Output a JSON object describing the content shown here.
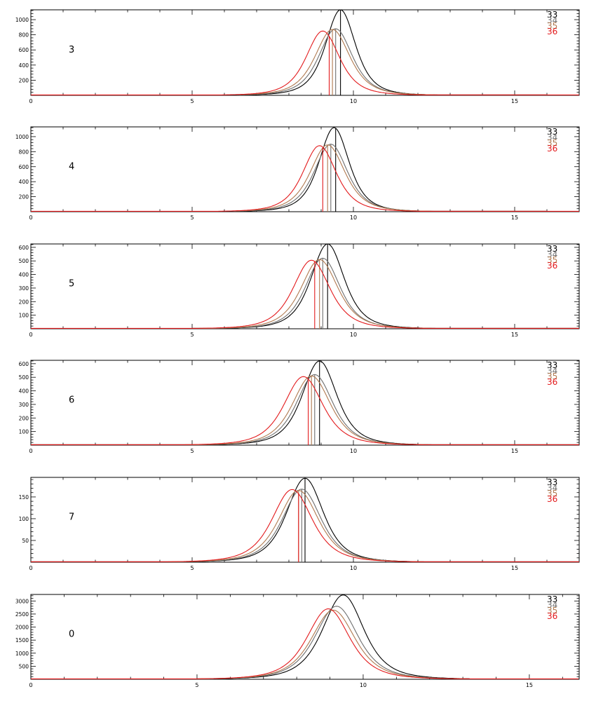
{
  "legend_labels": [
    "33",
    "34",
    "35",
    "36"
  ],
  "colors": {
    "33": "#000000",
    "34": "#6e6e6e",
    "35": "#b07a50",
    "36": "#e31a1c"
  },
  "chart_data": [
    {
      "type": "line",
      "panel_label": "3",
      "xlim": [
        0,
        17
      ],
      "ylim": [
        0,
        1130
      ],
      "xticks": [
        "0",
        "5",
        "10",
        "15"
      ],
      "yticks": [
        "200",
        "400",
        "600",
        "800",
        "1000"
      ],
      "legend_position": "top-right",
      "series": [
        {
          "name": "33",
          "color": "#000000",
          "peak_x": 9.6,
          "peak_y": 1130,
          "width": 0.45,
          "marker_x": 9.6,
          "x_start": 6.5,
          "x_end": 16.0
        },
        {
          "name": "34",
          "color": "#6e6e6e",
          "peak_x": 9.45,
          "peak_y": 880,
          "width": 0.5,
          "marker_x": 9.45,
          "x_start": 6.5,
          "x_end": 16.0
        },
        {
          "name": "35",
          "color": "#b07a50",
          "peak_x": 9.35,
          "peak_y": 870,
          "width": 0.52,
          "marker_x": 9.35,
          "x_start": 6.5,
          "x_end": 16.0
        },
        {
          "name": "36",
          "color": "#e31a1c",
          "peak_x": 9.05,
          "peak_y": 850,
          "width": 0.5,
          "marker_x": 9.25,
          "x_start": 0,
          "x_end": 17
        }
      ]
    },
    {
      "type": "line",
      "panel_label": "4",
      "xlim": [
        0,
        17
      ],
      "ylim": [
        0,
        1130
      ],
      "xticks": [
        "0",
        "5",
        "10",
        "15"
      ],
      "yticks": [
        "200",
        "400",
        "600",
        "800",
        "1000"
      ],
      "legend_position": "top-right",
      "series": [
        {
          "name": "33",
          "color": "#000000",
          "peak_x": 9.4,
          "peak_y": 1120,
          "width": 0.45,
          "marker_x": 9.45,
          "x_start": 6.3,
          "x_end": 16.0
        },
        {
          "name": "34",
          "color": "#6e6e6e",
          "peak_x": 9.3,
          "peak_y": 900,
          "width": 0.5,
          "marker_x": 9.3,
          "x_start": 6.3,
          "x_end": 16.0
        },
        {
          "name": "35",
          "color": "#b07a50",
          "peak_x": 9.2,
          "peak_y": 890,
          "width": 0.52,
          "marker_x": 9.2,
          "x_start": 6.3,
          "x_end": 16.0
        },
        {
          "name": "36",
          "color": "#e31a1c",
          "peak_x": 8.95,
          "peak_y": 880,
          "width": 0.5,
          "marker_x": 9.05,
          "x_start": 0,
          "x_end": 17
        }
      ]
    },
    {
      "type": "line",
      "panel_label": "5",
      "xlim": [
        0,
        17
      ],
      "ylim": [
        0,
        625
      ],
      "xticks": [
        "0",
        "5",
        "10",
        "15"
      ],
      "yticks": [
        "100",
        "200",
        "300",
        "400",
        "500",
        "600"
      ],
      "legend_position": "top-right",
      "series": [
        {
          "name": "33",
          "color": "#000000",
          "peak_x": 9.2,
          "peak_y": 625,
          "width": 0.5,
          "marker_x": 9.2,
          "x_start": 5.0,
          "x_end": 17
        },
        {
          "name": "34",
          "color": "#6e6e6e",
          "peak_x": 9.05,
          "peak_y": 520,
          "width": 0.52,
          "marker_x": 9.05,
          "x_start": 5.0,
          "x_end": 17
        },
        {
          "name": "35",
          "color": "#b07a50",
          "peak_x": 8.95,
          "peak_y": 510,
          "width": 0.55,
          "marker_x": 8.95,
          "x_start": 5.0,
          "x_end": 17
        },
        {
          "name": "36",
          "color": "#e31a1c",
          "peak_x": 8.7,
          "peak_y": 505,
          "width": 0.55,
          "marker_x": 8.8,
          "x_start": 0,
          "x_end": 17
        }
      ]
    },
    {
      "type": "line",
      "panel_label": "6",
      "xlim": [
        0,
        17
      ],
      "ylim": [
        0,
        625
      ],
      "xticks": [
        "0",
        "5",
        "10",
        "15"
      ],
      "yticks": [
        "100",
        "200",
        "300",
        "400",
        "500",
        "600"
      ],
      "legend_position": "top-right",
      "series": [
        {
          "name": "33",
          "color": "#000000",
          "peak_x": 8.95,
          "peak_y": 620,
          "width": 0.52,
          "marker_x": 8.95,
          "x_start": 0,
          "x_end": 17
        },
        {
          "name": "34",
          "color": "#6e6e6e",
          "peak_x": 8.8,
          "peak_y": 520,
          "width": 0.55,
          "marker_x": 8.8,
          "x_start": 0,
          "x_end": 17
        },
        {
          "name": "35",
          "color": "#b07a50",
          "peak_x": 8.7,
          "peak_y": 510,
          "width": 0.57,
          "marker_x": 8.7,
          "x_start": 0,
          "x_end": 17
        },
        {
          "name": "36",
          "color": "#e31a1c",
          "peak_x": 8.45,
          "peak_y": 505,
          "width": 0.58,
          "marker_x": 8.6,
          "x_start": 0,
          "x_end": 17
        }
      ]
    },
    {
      "type": "line",
      "panel_label": "7",
      "xlim": [
        0,
        17
      ],
      "ylim": [
        0,
        195
      ],
      "xticks": [
        "0",
        "5",
        "10",
        "15"
      ],
      "yticks": [
        "50",
        "100",
        "150"
      ],
      "legend_position": "top-right",
      "series": [
        {
          "name": "33",
          "color": "#000000",
          "peak_x": 8.5,
          "peak_y": 193,
          "width": 0.55,
          "marker_x": 8.5,
          "x_start": 0,
          "x_end": 17
        },
        {
          "name": "34",
          "color": "#6e6e6e",
          "peak_x": 8.4,
          "peak_y": 168,
          "width": 0.58,
          "marker_x": 8.4,
          "x_start": 0,
          "x_end": 17
        },
        {
          "name": "35",
          "color": "#b07a50",
          "peak_x": 8.3,
          "peak_y": 165,
          "width": 0.6,
          "marker_x": 8.3,
          "x_start": 0,
          "x_end": 17
        },
        {
          "name": "36",
          "color": "#e31a1c",
          "peak_x": 8.1,
          "peak_y": 167,
          "width": 0.6,
          "marker_x": 8.3,
          "x_start": 0,
          "x_end": 17
        }
      ]
    },
    {
      "type": "line",
      "panel_label": "0",
      "xlim": [
        0,
        16.5
      ],
      "ylim": [
        0,
        3250
      ],
      "xticks": [
        "0",
        "5",
        "10",
        "15"
      ],
      "yticks": [
        "500",
        "1000",
        "1500",
        "2000",
        "2500",
        "3000"
      ],
      "legend_position": "top-right",
      "series": [
        {
          "name": "33",
          "color": "#000000",
          "peak_x": 9.4,
          "peak_y": 3230,
          "width": 0.6,
          "marker_x": null,
          "x_start": 5.0,
          "x_end": 13.2
        },
        {
          "name": "34",
          "color": "#6e6e6e",
          "peak_x": 9.2,
          "peak_y": 2800,
          "width": 0.62,
          "marker_x": null,
          "x_start": 5.0,
          "x_end": 13.2
        },
        {
          "name": "35",
          "color": "#b07a50",
          "peak_x": 9.1,
          "peak_y": 2650,
          "width": 0.63,
          "marker_x": null,
          "x_start": 5.0,
          "x_end": 13.2
        },
        {
          "name": "36",
          "color": "#e31a1c",
          "peak_x": 8.95,
          "peak_y": 2700,
          "width": 0.62,
          "marker_x": null,
          "x_start": 0,
          "x_end": 16.5
        }
      ]
    }
  ]
}
